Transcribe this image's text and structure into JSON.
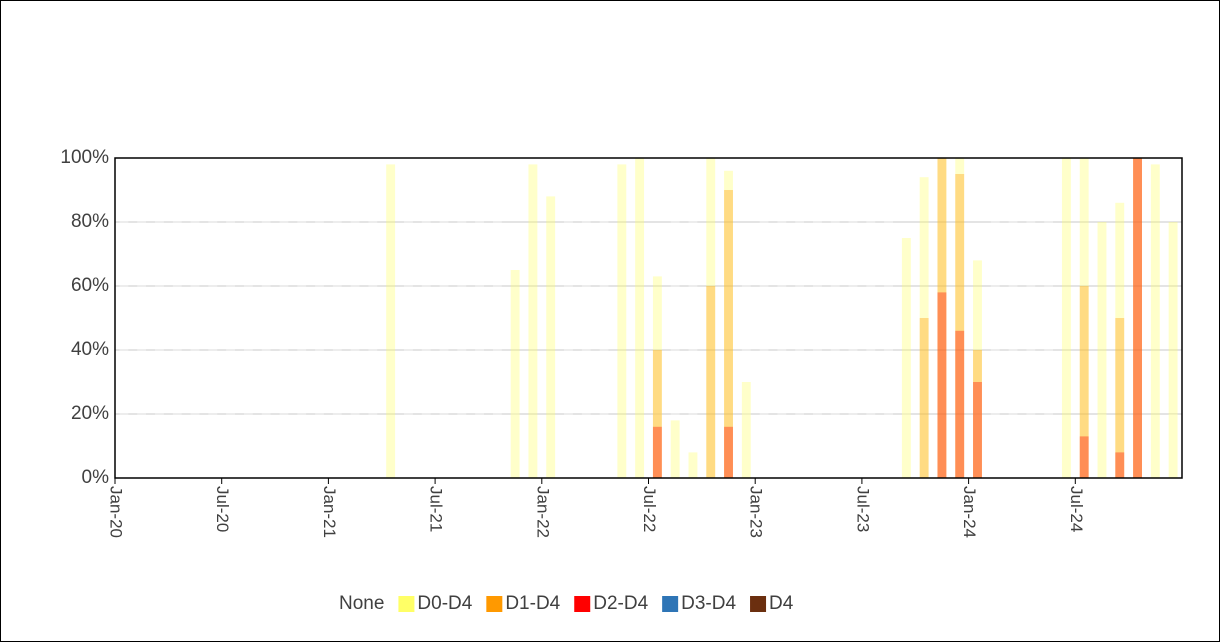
{
  "chart_data": {
    "type": "bar",
    "categories": [
      "Jan-20",
      null,
      null,
      null,
      null,
      null,
      "Jul-20",
      null,
      null,
      null,
      null,
      null,
      "Jan-21",
      null,
      null,
      null,
      null,
      null,
      "Jul-21",
      null,
      null,
      null,
      null,
      null,
      "Jan-22",
      null,
      null,
      null,
      null,
      null,
      "Jul-22",
      null,
      null,
      null,
      null,
      null,
      "Jan-23",
      null,
      null,
      null,
      null,
      null,
      "Jul-23",
      null,
      null,
      null,
      null,
      null,
      "Jan-24",
      null,
      null,
      null,
      null,
      null,
      "Jul-24",
      null,
      null,
      null,
      null,
      null
    ],
    "series": [
      {
        "name": "None",
        "color": "#ffffff",
        "values": [
          100,
          100,
          100,
          100,
          100,
          100,
          100,
          100,
          100,
          100,
          100,
          100,
          100,
          100,
          100,
          2,
          100,
          100,
          100,
          100,
          100,
          100,
          35,
          2,
          12,
          100,
          100,
          100,
          2,
          0,
          37,
          82,
          92,
          0,
          4,
          70,
          100,
          100,
          100,
          100,
          100,
          100,
          100,
          100,
          25,
          6,
          0,
          0,
          32,
          100,
          100,
          100,
          100,
          0,
          0,
          20,
          14,
          0,
          2,
          20
        ]
      },
      {
        "name": "D0-D4",
        "color": "#ffff66",
        "values": [
          0,
          0,
          0,
          0,
          0,
          0,
          0,
          0,
          0,
          0,
          0,
          0,
          0,
          0,
          0,
          98,
          0,
          0,
          0,
          0,
          0,
          0,
          65,
          98,
          88,
          0,
          0,
          0,
          98,
          100,
          63,
          18,
          8,
          100,
          96,
          30,
          0,
          0,
          0,
          0,
          0,
          0,
          0,
          0,
          75,
          94,
          100,
          100,
          68,
          0,
          0,
          0,
          0,
          100,
          100,
          80,
          86,
          100,
          98,
          80
        ]
      },
      {
        "name": "D1-D4",
        "color": "#ff9900",
        "values": [
          0,
          0,
          0,
          0,
          0,
          0,
          0,
          0,
          0,
          0,
          0,
          0,
          0,
          0,
          0,
          0,
          0,
          0,
          0,
          0,
          0,
          0,
          0,
          0,
          0,
          0,
          0,
          0,
          0,
          0,
          40,
          0,
          0,
          60,
          90,
          0,
          0,
          0,
          0,
          0,
          0,
          0,
          0,
          0,
          0,
          50,
          100,
          95,
          40,
          0,
          0,
          0,
          0,
          0,
          60,
          0,
          50,
          100,
          0,
          0
        ]
      },
      {
        "name": "D2-D4",
        "color": "#ff0000",
        "values": [
          0,
          0,
          0,
          0,
          0,
          0,
          0,
          0,
          0,
          0,
          0,
          0,
          0,
          0,
          0,
          0,
          0,
          0,
          0,
          0,
          0,
          0,
          0,
          0,
          0,
          0,
          0,
          0,
          0,
          0,
          16,
          0,
          0,
          0,
          16,
          0,
          0,
          0,
          0,
          0,
          0,
          0,
          0,
          0,
          0,
          0,
          58,
          46,
          30,
          0,
          0,
          0,
          0,
          0,
          13,
          0,
          8,
          100,
          0,
          0
        ]
      },
      {
        "name": "D3-D4",
        "color": "#2e75b6",
        "values": [
          0,
          0,
          0,
          0,
          0,
          0,
          0,
          0,
          0,
          0,
          0,
          0,
          0,
          0,
          0,
          0,
          0,
          0,
          0,
          0,
          0,
          0,
          0,
          0,
          0,
          0,
          0,
          0,
          0,
          0,
          0,
          0,
          0,
          0,
          0,
          0,
          0,
          0,
          0,
          0,
          0,
          0,
          0,
          0,
          0,
          0,
          0,
          0,
          0,
          0,
          0,
          0,
          0,
          0,
          0,
          0,
          0,
          0,
          0,
          0
        ]
      },
      {
        "name": "D4",
        "color": "#6b2f0f",
        "values": [
          0,
          0,
          0,
          0,
          0,
          0,
          0,
          0,
          0,
          0,
          0,
          0,
          0,
          0,
          0,
          0,
          0,
          0,
          0,
          0,
          0,
          0,
          0,
          0,
          0,
          0,
          0,
          0,
          0,
          0,
          0,
          0,
          0,
          0,
          0,
          0,
          0,
          0,
          0,
          0,
          0,
          0,
          0,
          0,
          0,
          0,
          0,
          0,
          0,
          0,
          0,
          0,
          0,
          0,
          0,
          0,
          0,
          0,
          0,
          0
        ]
      }
    ],
    "ylim": [
      0,
      100
    ],
    "yticks": [
      {
        "value": 0,
        "label": "0%"
      },
      {
        "value": 20,
        "label": "20%"
      },
      {
        "value": 40,
        "label": "40%"
      },
      {
        "value": 60,
        "label": "60%"
      },
      {
        "value": 80,
        "label": "80%"
      },
      {
        "value": 100,
        "label": "100%"
      }
    ],
    "grid": true,
    "legend": "bottom"
  }
}
